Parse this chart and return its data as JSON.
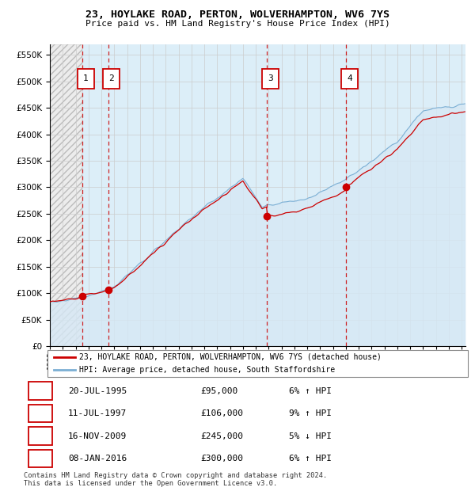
{
  "title": "23, HOYLAKE ROAD, PERTON, WOLVERHAMPTON, WV6 7YS",
  "subtitle": "Price paid vs. HM Land Registry's House Price Index (HPI)",
  "ylim": [
    0,
    570000
  ],
  "yticks": [
    0,
    50000,
    100000,
    150000,
    200000,
    250000,
    300000,
    350000,
    400000,
    450000,
    500000,
    550000
  ],
  "xlim_start": 1993.0,
  "xlim_end": 2025.3,
  "legend_line1": "23, HOYLAKE ROAD, PERTON, WOLVERHAMPTON, WV6 7YS (detached house)",
  "legend_line2": "HPI: Average price, detached house, South Staffordshire",
  "sale_points": [
    {
      "year": 1995.54,
      "price": 95000,
      "label": "1"
    },
    {
      "year": 1997.53,
      "price": 106000,
      "label": "2"
    },
    {
      "year": 2009.88,
      "price": 245000,
      "label": "3"
    },
    {
      "year": 2016.03,
      "price": 300000,
      "label": "4"
    }
  ],
  "table_rows": [
    {
      "num": "1",
      "date": "20-JUL-1995",
      "price": "£95,000",
      "hpi": "6% ↑ HPI"
    },
    {
      "num": "2",
      "date": "11-JUL-1997",
      "price": "£106,000",
      "hpi": "9% ↑ HPI"
    },
    {
      "num": "3",
      "date": "16-NOV-2009",
      "price": "£245,000",
      "hpi": "5% ↓ HPI"
    },
    {
      "num": "4",
      "date": "08-JAN-2016",
      "price": "£300,000",
      "hpi": "6% ↑ HPI"
    }
  ],
  "footnote": "Contains HM Land Registry data © Crown copyright and database right 2024.\nThis data is licensed under the Open Government Licence v3.0.",
  "hpi_color": "#7bafd4",
  "price_color": "#cc0000",
  "hpi_fill_color": "#d6e8f5",
  "ownership_bg_color": "#dceef8",
  "hatch_bg_color": "#e8e8e8",
  "grid_color": "#cccccc"
}
